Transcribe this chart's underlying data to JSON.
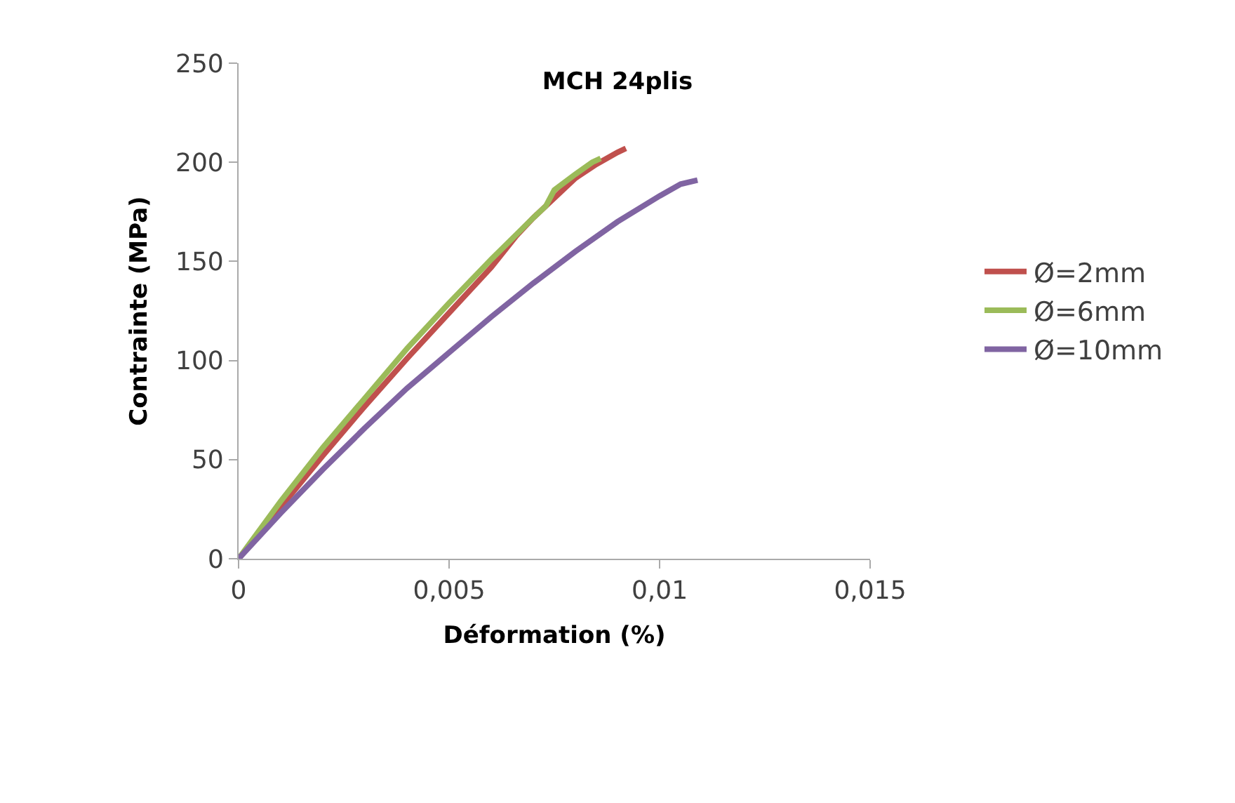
{
  "chart_data": {
    "type": "line",
    "title": "MCH 24plis",
    "xlabel": "Déformation (%)",
    "ylabel": "Contrainte (MPa)",
    "xlim": [
      0,
      0.015
    ],
    "xticks": [
      0,
      {
        "value": 0.005,
        "label": "0,005"
      },
      {
        "value": 0.01,
        "label": "0,01"
      },
      {
        "value": 0.015,
        "label": "0,015"
      }
    ],
    "ylim": [
      0,
      250
    ],
    "yticks": [
      0,
      50,
      100,
      150,
      200,
      250
    ],
    "legend": "right",
    "marker": "none",
    "line_style": "solid",
    "series": [
      {
        "name": "Ø=2mm",
        "color": "#c0504d",
        "x": [
          0,
          0.001,
          0.002,
          0.003,
          0.004,
          0.005,
          0.006,
          0.0066,
          0.007,
          0.0075,
          0.008,
          0.0085,
          0.009,
          0.0092
        ],
        "values": [
          0,
          26,
          52,
          77,
          101,
          124,
          147,
          163,
          172,
          182,
          192,
          199,
          205,
          207
        ]
      },
      {
        "name": "Ø=6mm",
        "color": "#9bbb59",
        "x": [
          0,
          0.001,
          0.002,
          0.003,
          0.004,
          0.005,
          0.006,
          0.007,
          0.0073,
          0.0075,
          0.008,
          0.0084,
          0.0086
        ],
        "values": [
          0,
          29,
          56,
          81,
          106,
          129,
          151,
          172,
          178,
          186,
          194,
          200,
          202
        ]
      },
      {
        "name": "Ø=10mm",
        "color": "#8064a2",
        "x": [
          0,
          0.001,
          0.002,
          0.003,
          0.004,
          0.005,
          0.006,
          0.007,
          0.008,
          0.009,
          0.01,
          0.0105,
          0.0109
        ],
        "values": [
          0,
          23,
          45,
          66,
          86,
          104,
          122,
          139,
          155,
          170,
          183,
          189,
          191
        ]
      }
    ]
  }
}
